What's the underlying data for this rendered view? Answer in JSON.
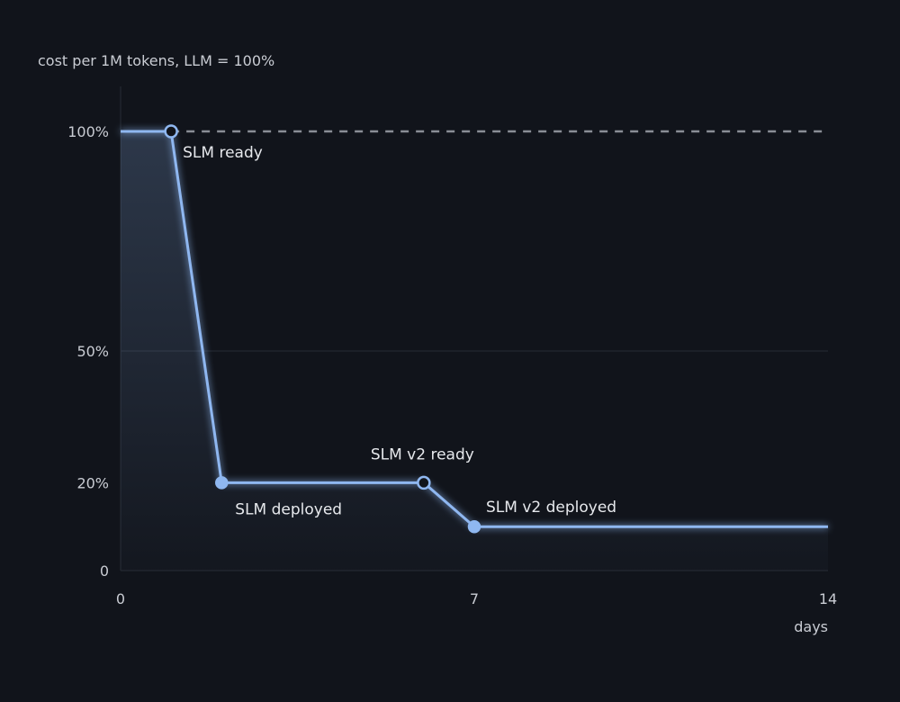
{
  "chart_data": {
    "type": "line",
    "ylabel": "cost per 1M tokens, LLM = 100%",
    "xlabel": "days",
    "xlim": [
      0,
      14
    ],
    "ylim": [
      0,
      100
    ],
    "x_ticks": [
      "0",
      "7",
      "14"
    ],
    "y_ticks": [
      "0",
      "20%",
      "50%",
      "100%"
    ],
    "series": [
      {
        "x": [
          0,
          1,
          2,
          6,
          7,
          14
        ],
        "y": [
          100,
          100,
          20,
          20,
          10,
          10
        ]
      }
    ],
    "reference_line": {
      "y": 100,
      "style": "dashed"
    },
    "markers": [
      {
        "x": 1,
        "y": 100,
        "style": "hollow",
        "label": "SLM ready"
      },
      {
        "x": 2,
        "y": 20,
        "style": "filled",
        "label": "SLM deployed"
      },
      {
        "x": 6,
        "y": 20,
        "style": "hollow",
        "label": "SLM v2 ready"
      },
      {
        "x": 7,
        "y": 10,
        "style": "filled",
        "label": "SLM v2 deployed"
      }
    ],
    "colors": {
      "background": "#11141b",
      "line": "#8fb7f0",
      "grid": "#20242d",
      "reference": "#8a8e96",
      "text": "#d4d7de"
    }
  }
}
